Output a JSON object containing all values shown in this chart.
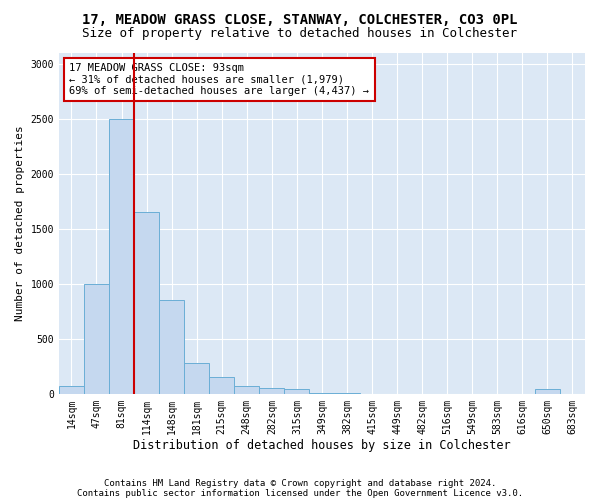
{
  "title1": "17, MEADOW GRASS CLOSE, STANWAY, COLCHESTER, CO3 0PL",
  "title2": "Size of property relative to detached houses in Colchester",
  "xlabel": "Distribution of detached houses by size in Colchester",
  "ylabel": "Number of detached properties",
  "footnote1": "Contains HM Land Registry data © Crown copyright and database right 2024.",
  "footnote2": "Contains public sector information licensed under the Open Government Licence v3.0.",
  "bin_labels": [
    "14sqm",
    "47sqm",
    "81sqm",
    "114sqm",
    "148sqm",
    "181sqm",
    "215sqm",
    "248sqm",
    "282sqm",
    "315sqm",
    "349sqm",
    "382sqm",
    "415sqm",
    "449sqm",
    "482sqm",
    "516sqm",
    "549sqm",
    "583sqm",
    "616sqm",
    "650sqm",
    "683sqm"
  ],
  "bar_values": [
    75,
    1000,
    2500,
    1650,
    850,
    280,
    150,
    75,
    50,
    40,
    10,
    5,
    3,
    2,
    1,
    1,
    0,
    0,
    0,
    40,
    0
  ],
  "bar_color": "#c5d8ef",
  "bar_edgecolor": "#6aaed6",
  "vline_color": "#cc0000",
  "vline_pos": 2.5,
  "annotation_text": "17 MEADOW GRASS CLOSE: 93sqm\n← 31% of detached houses are smaller (1,979)\n69% of semi-detached houses are larger (4,437) →",
  "annotation_box_edgecolor": "#cc0000",
  "ylim": [
    0,
    3100
  ],
  "yticks": [
    0,
    500,
    1000,
    1500,
    2000,
    2500,
    3000
  ],
  "bg_color": "#dce8f5",
  "title1_fontsize": 10,
  "title2_fontsize": 9,
  "xlabel_fontsize": 8.5,
  "ylabel_fontsize": 8,
  "tick_fontsize": 7,
  "ann_fontsize": 7.5,
  "footnote_fontsize": 6.5
}
